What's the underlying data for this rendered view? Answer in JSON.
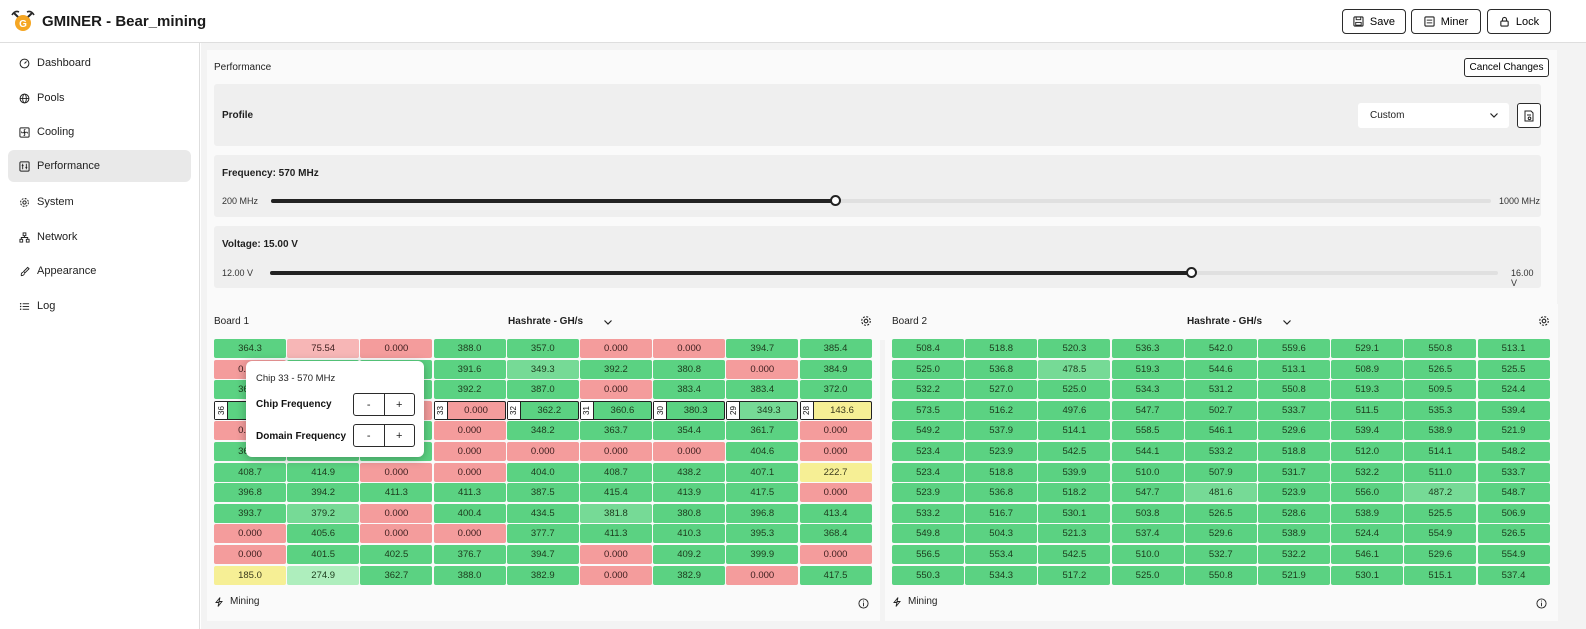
{
  "app": {
    "title": "GMINER - Bear_mining"
  },
  "toolbar": {
    "save_label": "Save",
    "miner_label": "Miner",
    "lock_label": "Lock"
  },
  "sidebar": {
    "items": [
      {
        "label": "Dashboard",
        "icon": "dashboard-icon"
      },
      {
        "label": "Pools",
        "icon": "globe-icon"
      },
      {
        "label": "Cooling",
        "icon": "fan-icon"
      },
      {
        "label": "Performance",
        "icon": "performance-icon",
        "active": true
      },
      {
        "label": "System",
        "icon": "gear-icon"
      },
      {
        "label": "Network",
        "icon": "network-icon"
      },
      {
        "label": "Appearance",
        "icon": "brush-icon"
      },
      {
        "label": "Log",
        "icon": "list-icon"
      }
    ]
  },
  "performance": {
    "title": "Performance",
    "cancel_label": "Cancel Changes",
    "profile": {
      "label": "Profile",
      "value": "Custom"
    },
    "frequency": {
      "label": "Frequency: 570 MHz",
      "min_label": "200 MHz",
      "max_label": "1000 MHz",
      "min": 200,
      "max": 1000,
      "value": 570
    },
    "voltage": {
      "label": "Voltage: 15.00 V",
      "min_label": "12.00 V",
      "max_label": "16.00 V",
      "min": 12.0,
      "max": 16.0,
      "value": 15.0
    }
  },
  "boards": [
    {
      "title": "Board 1",
      "metric": "Hashrate - GH/s",
      "status": "Mining",
      "cells": [
        [
          [
            "364.3",
            "g1"
          ],
          [
            "75.54",
            "pink"
          ],
          [
            "0.000",
            "red"
          ],
          [
            "388.0",
            "g1"
          ],
          [
            "357.0",
            "g1"
          ],
          [
            "0.000",
            "red"
          ],
          [
            "0.000",
            "red"
          ],
          [
            "394.7",
            "g1"
          ],
          [
            "385.4",
            "g1"
          ]
        ],
        [
          [
            "0.000",
            "red"
          ],
          [
            "",
            "g1"
          ],
          [
            "",
            "g1"
          ],
          [
            "391.6",
            "g1"
          ],
          [
            "349.3",
            "g2"
          ],
          [
            "392.2",
            "g1"
          ],
          [
            "380.8",
            "g1"
          ],
          [
            "0.000",
            "red"
          ],
          [
            "384.9",
            "g1"
          ]
        ],
        [
          [
            "361.2",
            "g1"
          ],
          [
            "",
            "g1"
          ],
          [
            "",
            "g1"
          ],
          [
            "392.2",
            "g1"
          ],
          [
            "387.0",
            "g1"
          ],
          [
            "0.000",
            "red"
          ],
          [
            "383.4",
            "g1"
          ],
          [
            "383.4",
            "g1"
          ],
          [
            "372.0",
            "g1"
          ]
        ],
        [
          [
            "",
            "g1",
            "36"
          ],
          [
            "",
            "g1"
          ],
          [
            "",
            "red"
          ],
          [
            "0.000",
            "red",
            "33"
          ],
          [
            "362.2",
            "g1",
            "32"
          ],
          [
            "360.6",
            "g1",
            "31"
          ],
          [
            "380.3",
            "g1",
            "30"
          ],
          [
            "349.3",
            "g2",
            "29"
          ],
          [
            "143.6",
            "yellow",
            "28"
          ]
        ],
        [
          [
            "0.000",
            "red"
          ],
          [
            "",
            "g1"
          ],
          [
            "",
            "g1"
          ],
          [
            "0.000",
            "red"
          ],
          [
            "348.2",
            "g1"
          ],
          [
            "363.7",
            "g1"
          ],
          [
            "354.4",
            "g1"
          ],
          [
            "361.7",
            "g1"
          ],
          [
            "0.000",
            "red"
          ]
        ],
        [
          [
            "369.0",
            "g1"
          ],
          [
            "",
            "g1"
          ],
          [
            "",
            "g1"
          ],
          [
            "0.000",
            "red"
          ],
          [
            "0.000",
            "red"
          ],
          [
            "0.000",
            "red"
          ],
          [
            "0.000",
            "red"
          ],
          [
            "404.6",
            "g1"
          ],
          [
            "0.000",
            "red"
          ]
        ],
        [
          [
            "408.7",
            "g1"
          ],
          [
            "414.9",
            "g1"
          ],
          [
            "0.000",
            "red"
          ],
          [
            "0.000",
            "red"
          ],
          [
            "404.0",
            "g1"
          ],
          [
            "408.7",
            "g1"
          ],
          [
            "438.2",
            "g1"
          ],
          [
            "407.1",
            "g1"
          ],
          [
            "222.7",
            "yellow"
          ]
        ],
        [
          [
            "396.8",
            "g1"
          ],
          [
            "394.2",
            "g1"
          ],
          [
            "411.3",
            "g1"
          ],
          [
            "411.3",
            "g1"
          ],
          [
            "387.5",
            "g1"
          ],
          [
            "415.4",
            "g1"
          ],
          [
            "413.9",
            "g1"
          ],
          [
            "417.5",
            "g1"
          ],
          [
            "0.000",
            "red"
          ]
        ],
        [
          [
            "393.7",
            "g1"
          ],
          [
            "379.2",
            "g2"
          ],
          [
            "0.000",
            "red"
          ],
          [
            "400.4",
            "g1"
          ],
          [
            "434.5",
            "g1"
          ],
          [
            "381.8",
            "g2"
          ],
          [
            "380.8",
            "g1"
          ],
          [
            "396.8",
            "g1"
          ],
          [
            "413.4",
            "g1"
          ]
        ],
        [
          [
            "0.000",
            "red"
          ],
          [
            "405.6",
            "g1"
          ],
          [
            "0.000",
            "red"
          ],
          [
            "0.000",
            "red"
          ],
          [
            "377.7",
            "g1"
          ],
          [
            "411.3",
            "g1"
          ],
          [
            "410.3",
            "g1"
          ],
          [
            "395.3",
            "g1"
          ],
          [
            "368.4",
            "g1"
          ]
        ],
        [
          [
            "0.000",
            "red"
          ],
          [
            "401.5",
            "g1"
          ],
          [
            "402.5",
            "g1"
          ],
          [
            "376.7",
            "g1"
          ],
          [
            "394.7",
            "g1"
          ],
          [
            "0.000",
            "red"
          ],
          [
            "409.2",
            "g1"
          ],
          [
            "399.9",
            "g1"
          ],
          [
            "0.000",
            "red"
          ]
        ],
        [
          [
            "185.0",
            "yellow"
          ],
          [
            "274.9",
            "g3"
          ],
          [
            "362.7",
            "g1"
          ],
          [
            "388.0",
            "g1"
          ],
          [
            "382.9",
            "g1"
          ],
          [
            "0.000",
            "red"
          ],
          [
            "382.9",
            "g1"
          ],
          [
            "0.000",
            "red"
          ],
          [
            "417.5",
            "g1"
          ]
        ]
      ]
    },
    {
      "title": "Board 2",
      "metric": "Hashrate - GH/s",
      "status": "Mining",
      "cells": [
        [
          [
            "508.4",
            "g1"
          ],
          [
            "518.8",
            "g1"
          ],
          [
            "520.3",
            "g1"
          ],
          [
            "536.3",
            "g1"
          ],
          [
            "542.0",
            "g1"
          ],
          [
            "559.6",
            "g1"
          ],
          [
            "529.1",
            "g1"
          ],
          [
            "550.8",
            "g1"
          ],
          [
            "513.1",
            "g1"
          ]
        ],
        [
          [
            "525.0",
            "g1"
          ],
          [
            "536.8",
            "g1"
          ],
          [
            "478.5",
            "g2"
          ],
          [
            "519.3",
            "g1"
          ],
          [
            "544.6",
            "g1"
          ],
          [
            "513.1",
            "g1"
          ],
          [
            "508.9",
            "g1"
          ],
          [
            "526.5",
            "g1"
          ],
          [
            "525.5",
            "g1"
          ]
        ],
        [
          [
            "532.2",
            "g1"
          ],
          [
            "527.0",
            "g1"
          ],
          [
            "525.0",
            "g1"
          ],
          [
            "534.3",
            "g1"
          ],
          [
            "531.2",
            "g1"
          ],
          [
            "550.8",
            "g1"
          ],
          [
            "519.3",
            "g1"
          ],
          [
            "509.5",
            "g1"
          ],
          [
            "524.4",
            "g1"
          ]
        ],
        [
          [
            "573.5",
            "g1"
          ],
          [
            "516.2",
            "g1"
          ],
          [
            "497.6",
            "g1"
          ],
          [
            "547.7",
            "g1"
          ],
          [
            "502.7",
            "g1"
          ],
          [
            "533.7",
            "g1"
          ],
          [
            "511.5",
            "g1"
          ],
          [
            "535.3",
            "g1"
          ],
          [
            "539.4",
            "g1"
          ]
        ],
        [
          [
            "549.2",
            "g1"
          ],
          [
            "537.9",
            "g1"
          ],
          [
            "514.1",
            "g1"
          ],
          [
            "558.5",
            "g1"
          ],
          [
            "546.1",
            "g1"
          ],
          [
            "529.6",
            "g1"
          ],
          [
            "539.4",
            "g1"
          ],
          [
            "538.9",
            "g1"
          ],
          [
            "521.9",
            "g1"
          ]
        ],
        [
          [
            "523.4",
            "g1"
          ],
          [
            "523.9",
            "g1"
          ],
          [
            "542.5",
            "g1"
          ],
          [
            "544.1",
            "g1"
          ],
          [
            "533.2",
            "g1"
          ],
          [
            "518.8",
            "g1"
          ],
          [
            "512.0",
            "g1"
          ],
          [
            "514.1",
            "g1"
          ],
          [
            "548.2",
            "g1"
          ]
        ],
        [
          [
            "523.4",
            "g1"
          ],
          [
            "518.8",
            "g1"
          ],
          [
            "539.9",
            "g1"
          ],
          [
            "510.0",
            "g1"
          ],
          [
            "507.9",
            "g1"
          ],
          [
            "531.7",
            "g1"
          ],
          [
            "532.2",
            "g1"
          ],
          [
            "511.0",
            "g1"
          ],
          [
            "533.7",
            "g1"
          ]
        ],
        [
          [
            "523.9",
            "g1"
          ],
          [
            "536.8",
            "g1"
          ],
          [
            "518.2",
            "g1"
          ],
          [
            "547.7",
            "g1"
          ],
          [
            "481.6",
            "g2"
          ],
          [
            "523.9",
            "g1"
          ],
          [
            "556.0",
            "g1"
          ],
          [
            "487.2",
            "g2"
          ],
          [
            "548.7",
            "g1"
          ]
        ],
        [
          [
            "533.2",
            "g1"
          ],
          [
            "516.7",
            "g1"
          ],
          [
            "530.1",
            "g1"
          ],
          [
            "503.8",
            "g1"
          ],
          [
            "526.5",
            "g1"
          ],
          [
            "528.6",
            "g1"
          ],
          [
            "538.9",
            "g1"
          ],
          [
            "525.5",
            "g1"
          ],
          [
            "506.9",
            "g1"
          ]
        ],
        [
          [
            "549.8",
            "g1"
          ],
          [
            "504.3",
            "g1"
          ],
          [
            "521.3",
            "g1"
          ],
          [
            "537.4",
            "g1"
          ],
          [
            "529.6",
            "g1"
          ],
          [
            "538.9",
            "g1"
          ],
          [
            "524.4",
            "g1"
          ],
          [
            "554.9",
            "g1"
          ],
          [
            "526.5",
            "g1"
          ]
        ],
        [
          [
            "556.5",
            "g1"
          ],
          [
            "553.4",
            "g1"
          ],
          [
            "542.5",
            "g1"
          ],
          [
            "510.0",
            "g1"
          ],
          [
            "532.7",
            "g1"
          ],
          [
            "532.2",
            "g1"
          ],
          [
            "546.1",
            "g1"
          ],
          [
            "529.6",
            "g1"
          ],
          [
            "554.9",
            "g1"
          ]
        ],
        [
          [
            "550.3",
            "g1"
          ],
          [
            "534.3",
            "g1"
          ],
          [
            "517.2",
            "g1"
          ],
          [
            "525.0",
            "g1"
          ],
          [
            "550.8",
            "g1"
          ],
          [
            "521.9",
            "g1"
          ],
          [
            "530.1",
            "g1"
          ],
          [
            "515.1",
            "g1"
          ],
          [
            "537.4",
            "g1"
          ]
        ]
      ]
    }
  ],
  "popup": {
    "title": "Chip 33 - 570 MHz",
    "chip_label": "Chip Frequency",
    "domain_label": "Domain Frequency",
    "minus": "-",
    "plus": "+"
  }
}
